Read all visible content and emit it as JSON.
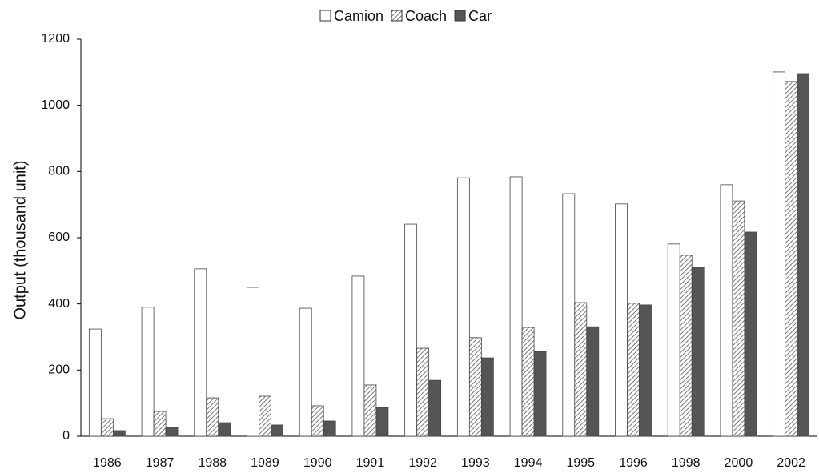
{
  "chart_data": {
    "type": "bar",
    "y_label": "Output (thousand unit)",
    "categories": [
      "1986",
      "1987",
      "1988",
      "1989",
      "1990",
      "1991",
      "1992",
      "1993",
      "1994",
      "1995",
      "1996",
      "1998",
      "2000",
      "2002"
    ],
    "series": [
      {
        "name": "Camion",
        "color": "#ffffff",
        "values": [
          324,
          390,
          506,
          450,
          387,
          484,
          641,
          781,
          784,
          733,
          702,
          581,
          760,
          1101
        ]
      },
      {
        "name": "Coach",
        "color": "#bbbbbb",
        "values": [
          53,
          75,
          116,
          121,
          92,
          155,
          266,
          298,
          329,
          404,
          402,
          547,
          711,
          1072
        ]
      },
      {
        "name": "Car",
        "color": "#555555",
        "values": [
          17,
          27,
          41,
          34,
          46,
          87,
          169,
          237,
          256,
          331,
          397,
          511,
          617,
          1096
        ]
      }
    ],
    "ylim": [
      0,
      1200
    ],
    "yticks": [
      0,
      200,
      400,
      600,
      800,
      1000,
      1200
    ],
    "legend": "top"
  }
}
